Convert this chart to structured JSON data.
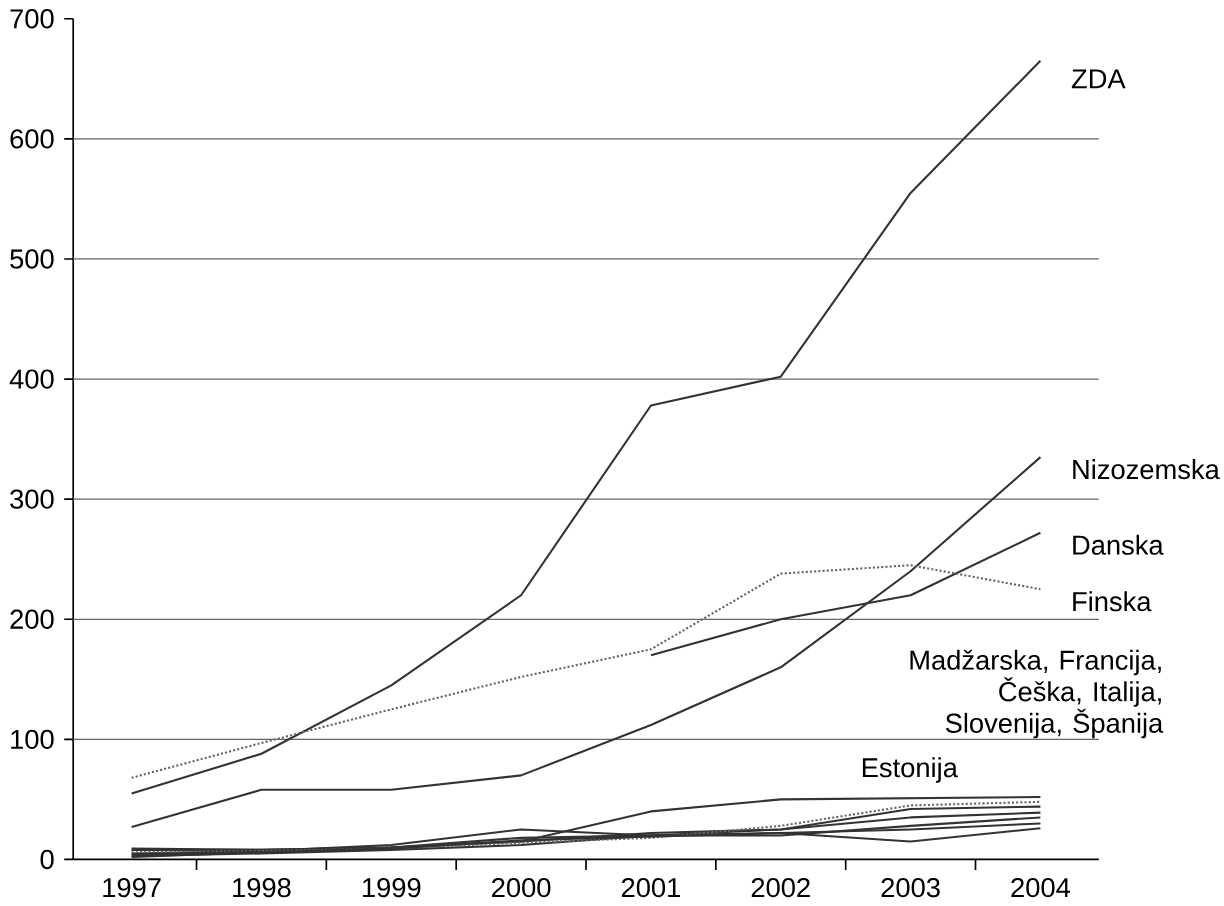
{
  "chart_data": {
    "type": "line",
    "categories": [
      "1997",
      "1998",
      "1999",
      "2000",
      "2001",
      "2002",
      "2003",
      "2004"
    ],
    "ylim": [
      0,
      700
    ],
    "yticks": [
      0,
      100,
      200,
      300,
      400,
      500,
      600,
      700
    ],
    "grid": "y",
    "legend": false,
    "marker": "none",
    "series": [
      {
        "name": "ZDA",
        "color": "#333333",
        "line_style": "solid",
        "values": [
          55,
          88,
          145,
          220,
          378,
          402,
          555,
          665
        ]
      },
      {
        "name": "Nizozemska",
        "color": "#333333",
        "line_style": "solid",
        "values": [
          27,
          58,
          58,
          70,
          112,
          160,
          240,
          335
        ]
      },
      {
        "name": "Danska",
        "color": "#333333",
        "line_style": "solid",
        "values": [
          null,
          null,
          null,
          null,
          170,
          200,
          220,
          272
        ]
      },
      {
        "name": "Finska",
        "color": "#666666",
        "line_style": "dotted",
        "values": [
          68,
          97,
          125,
          152,
          175,
          238,
          245,
          225
        ]
      },
      {
        "name": "Estonija",
        "color": "#333333",
        "line_style": "solid",
        "values": [
          8,
          8,
          10,
          15,
          40,
          50,
          51,
          52
        ]
      },
      {
        "color": "#333333",
        "line_style": "solid",
        "values": [
          5,
          7,
          12,
          25,
          20,
          25,
          42,
          44
        ]
      },
      {
        "color": "#333333",
        "line_style": "solid",
        "values": [
          2,
          6,
          10,
          15,
          22,
          25,
          35,
          39
        ]
      },
      {
        "color": "#333333",
        "line_style": "solid",
        "values": [
          9,
          8,
          10,
          18,
          20,
          22,
          15,
          26
        ]
      },
      {
        "color": "#333333",
        "line_style": "solid",
        "values": [
          3,
          5,
          8,
          12,
          20,
          20,
          28,
          35
        ]
      },
      {
        "color": "#666666",
        "line_style": "dotted",
        "values": [
          6,
          7,
          9,
          14,
          18,
          28,
          45,
          48
        ]
      },
      {
        "color": "#333333",
        "line_style": "solid",
        "values": [
          4,
          6,
          9,
          16,
          19,
          22,
          25,
          30
        ]
      }
    ],
    "annotations": [
      "Madžarska, Francija, Češka, Italija, Slovenija, Španija"
    ]
  }
}
